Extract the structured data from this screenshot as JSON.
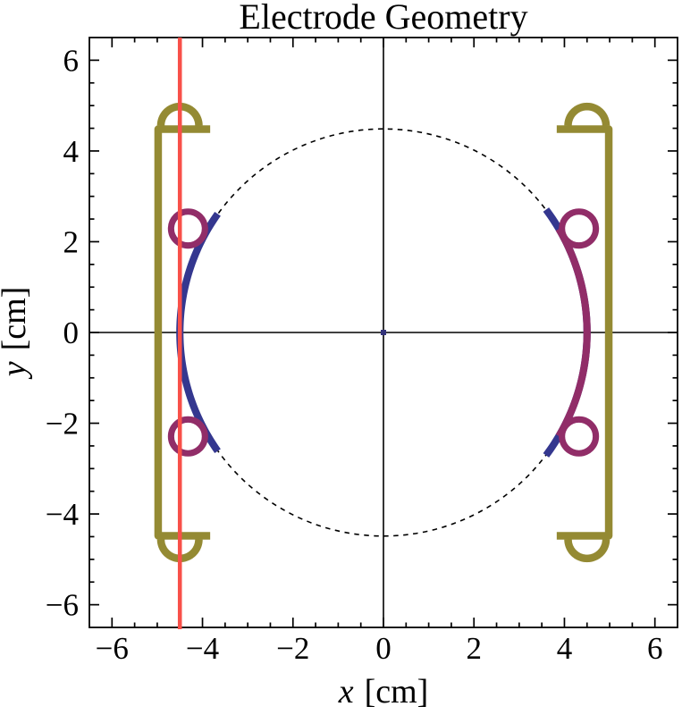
{
  "title": "Electrode Geometry",
  "axes": {
    "x_var": "x",
    "x_unit": "[cm]",
    "y_var": "y",
    "y_unit": "[cm]",
    "x_tick_labels": [
      "−6",
      "−4",
      "−2",
      "0",
      "2",
      "4",
      "6"
    ],
    "y_tick_labels": [
      "−6",
      "−4",
      "−2",
      "0",
      "2",
      "4",
      "6"
    ]
  },
  "colors": {
    "frame": "#000000",
    "dashed_circle": "#000000",
    "electrode_blue": "#34378F",
    "electrode_purple": "#912D68",
    "holder_olive": "#948A33",
    "laser_red": "#F85049",
    "origin_marker": "#33337A",
    "background": "#FFFFFF"
  },
  "chart_data": {
    "type": "line",
    "title": "Electrode Geometry",
    "xlabel": "x [cm]",
    "ylabel": "y [cm]",
    "xlim": [
      -6.5,
      6.5
    ],
    "ylim": [
      -6.5,
      6.5
    ],
    "x_major_ticks": [
      -6,
      -4,
      -2,
      0,
      2,
      4,
      6
    ],
    "y_major_ticks": [
      -6,
      -4,
      -2,
      0,
      2,
      4,
      6
    ],
    "minor_tick_step": 0.5,
    "grid": false,
    "units": "cm",
    "elements": {
      "dashed_reference_circle": {
        "center": [
          0,
          0
        ],
        "radius": 4.5,
        "color": "#000000",
        "line_style": "dashed"
      },
      "electrode_arcs": [
        {
          "id": "left-electrode-arc",
          "center": [
            0,
            0
          ],
          "radius": 4.5,
          "angle_start_deg": 144.5,
          "angle_end_deg": 215.5,
          "color": "#34378F",
          "stroke_cm": 0.16
        },
        {
          "id": "right-electrode-arc-outer",
          "center": [
            0,
            0
          ],
          "radius": 4.5,
          "angle_start_deg": -37,
          "angle_end_deg": 37,
          "color": "#34378F",
          "stroke_cm": 0.16
        },
        {
          "id": "right-electrode-arc-inner",
          "center": [
            0,
            0
          ],
          "radius": 4.5,
          "angle_start_deg": -30.5,
          "angle_end_deg": 30.5,
          "color": "#912D68",
          "stroke_cm": 0.16
        }
      ],
      "rod_electrode_circles": {
        "radius": 0.375,
        "stroke_cm": 0.14,
        "color": "#912D68",
        "centers": [
          [
            -4.32,
            2.29
          ],
          [
            -4.32,
            -2.29
          ],
          [
            4.32,
            2.29
          ],
          [
            4.32,
            -2.29
          ]
        ]
      },
      "holder_brackets": {
        "color": "#948A33",
        "stroke_cm": 0.168,
        "rod_x": 4.98,
        "cap_y": 4.48,
        "cap_inner_x": 3.83,
        "dome_center_x": 4.5,
        "dome_center_y": 4.56,
        "dome_radius": 0.42,
        "sides": [
          "left",
          "right"
        ]
      },
      "laser_beam_line": {
        "x": -4.5,
        "color": "#F85049",
        "stroke_cm": 0.09
      },
      "origin_marker": {
        "center": [
          0,
          0
        ],
        "color": "#33337A"
      }
    }
  }
}
